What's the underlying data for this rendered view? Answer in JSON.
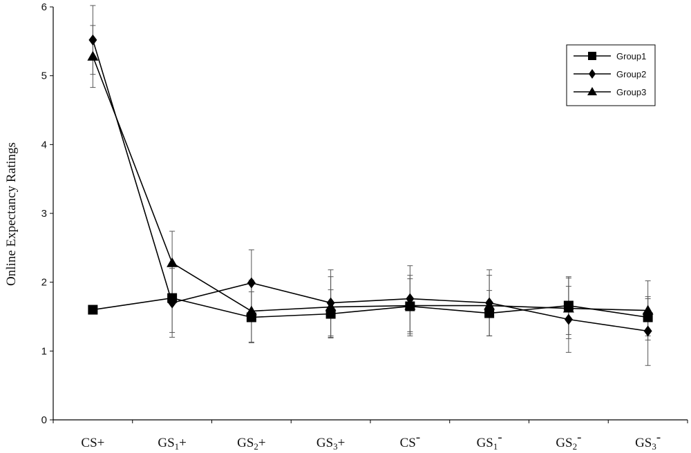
{
  "chart_data": {
    "type": "line",
    "ylabel": "Online Expectancy Ratings",
    "xlabel": "",
    "ylim": [
      0,
      6
    ],
    "yticks": [
      "0",
      "1",
      "2",
      "3",
      "4",
      "5",
      "6"
    ],
    "categories": [
      {
        "main": "CS",
        "sub": "",
        "sign": "+"
      },
      {
        "main": "GS",
        "sub": "1",
        "sign": "+"
      },
      {
        "main": "GS",
        "sub": "2",
        "sign": "+"
      },
      {
        "main": "GS",
        "sub": "3",
        "sign": "+"
      },
      {
        "main": "CS",
        "sub": "",
        "sign": "-"
      },
      {
        "main": "GS",
        "sub": "1",
        "sign": "-"
      },
      {
        "main": "GS",
        "sub": "2",
        "sign": "-"
      },
      {
        "main": "GS",
        "sub": "3",
        "sign": "-"
      }
    ],
    "series": [
      {
        "name": "Group1",
        "marker": "square",
        "values": [
          1.6,
          1.77,
          1.49,
          1.54,
          1.65,
          1.55,
          1.66,
          1.49
        ],
        "errors": [
          0,
          0.5,
          0.37,
          0.35,
          0.4,
          0.33,
          0.42,
          0.27
        ]
      },
      {
        "name": "Group2",
        "marker": "diamond",
        "values": [
          5.52,
          1.7,
          1.99,
          1.7,
          1.76,
          1.7,
          1.46,
          1.29
        ],
        "errors": [
          0.5,
          0.5,
          0.48,
          0.48,
          0.48,
          0.48,
          0.48,
          0.5
        ]
      },
      {
        "name": "Group3",
        "marker": "triangle",
        "values": [
          5.28,
          2.28,
          1.58,
          1.64,
          1.66,
          1.66,
          1.62,
          1.59
        ],
        "errors": [
          0.45,
          0.46,
          0.45,
          0.44,
          0.44,
          0.44,
          0.44,
          0.43
        ]
      }
    ],
    "legend": {
      "position": "top-right"
    },
    "grid": false
  }
}
